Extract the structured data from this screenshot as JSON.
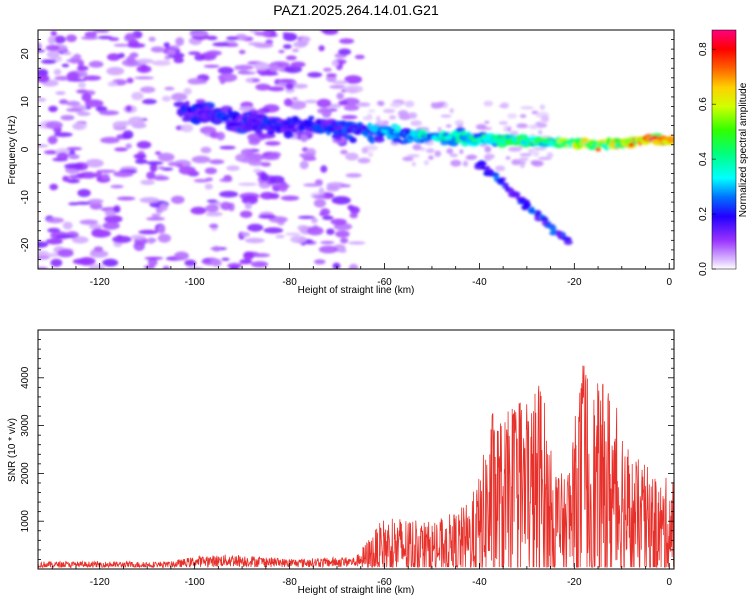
{
  "title": "PAZ1.2025.264.14.01.G21",
  "colors": {
    "line": "#e8302a",
    "axis": "#000000"
  },
  "chart_data": [
    {
      "type": "heatmap",
      "name": "spectrogram",
      "xlabel": "Height of straight line (km)",
      "ylabel": "Frequency (Hz)",
      "xlim": [
        -133,
        1
      ],
      "ylim": [
        -25,
        25
      ],
      "xticks": [
        -120,
        -100,
        -80,
        -60,
        -40,
        -20,
        0
      ],
      "yticks": [
        -20,
        -10,
        0,
        10,
        20
      ],
      "colorbar": {
        "label": "Normalized spectral amplitude",
        "ticks": [
          0.0,
          0.2,
          0.4,
          0.6,
          0.8
        ],
        "tick_labels": [
          "0.0",
          "0.2",
          "0.4",
          "0.6",
          "0.8"
        ],
        "range": [
          0,
          0.87
        ]
      },
      "main_track": [
        {
          "x": -103,
          "y": 8,
          "a": 0.2
        },
        {
          "x": -95,
          "y": 7,
          "a": 0.22
        },
        {
          "x": -85,
          "y": 5.5,
          "a": 0.2
        },
        {
          "x": -75,
          "y": 5,
          "a": 0.2
        },
        {
          "x": -65,
          "y": 4,
          "a": 0.25
        },
        {
          "x": -55,
          "y": 3,
          "a": 0.32
        },
        {
          "x": -45,
          "y": 2.5,
          "a": 0.38
        },
        {
          "x": -35,
          "y": 2,
          "a": 0.42
        },
        {
          "x": -25,
          "y": 1.5,
          "a": 0.48
        },
        {
          "x": -15,
          "y": 1,
          "a": 0.6
        },
        {
          "x": -8,
          "y": 1.5,
          "a": 0.7
        },
        {
          "x": -3,
          "y": 2.5,
          "a": 0.8
        },
        {
          "x": 0,
          "y": 1.5,
          "a": 0.7
        }
      ],
      "secondary_track": [
        {
          "x": -40,
          "y": -3
        },
        {
          "x": -35,
          "y": -7
        },
        {
          "x": -30,
          "y": -12
        },
        {
          "x": -25,
          "y": -16
        },
        {
          "x": -21,
          "y": -19
        }
      ],
      "noise_region_x": [
        -133,
        -65
      ]
    },
    {
      "type": "line",
      "name": "snr",
      "xlabel": "Height of straight line (km)",
      "ylabel": "SNR (10 * v/v)",
      "xlim": [
        -133,
        1
      ],
      "ylim": [
        0,
        5000
      ],
      "xticks": [
        -120,
        -100,
        -80,
        -60,
        -40,
        -20,
        0
      ],
      "yticks": [
        1000,
        2000,
        3000,
        4000
      ],
      "envelope": [
        {
          "x": -133,
          "y": 150
        },
        {
          "x": -105,
          "y": 150
        },
        {
          "x": -100,
          "y": 250
        },
        {
          "x": -92,
          "y": 300
        },
        {
          "x": -80,
          "y": 200
        },
        {
          "x": -66,
          "y": 250
        },
        {
          "x": -64,
          "y": 500
        },
        {
          "x": -60,
          "y": 1000
        },
        {
          "x": -55,
          "y": 1000
        },
        {
          "x": -50,
          "y": 900
        },
        {
          "x": -45,
          "y": 1100
        },
        {
          "x": -42,
          "y": 1300
        },
        {
          "x": -40,
          "y": 1800
        },
        {
          "x": -37,
          "y": 3200
        },
        {
          "x": -35,
          "y": 2800
        },
        {
          "x": -32,
          "y": 3400
        },
        {
          "x": -29,
          "y": 3300
        },
        {
          "x": -27,
          "y": 3800
        },
        {
          "x": -25,
          "y": 2300
        },
        {
          "x": -22,
          "y": 1700
        },
        {
          "x": -20,
          "y": 2800
        },
        {
          "x": -18,
          "y": 4200
        },
        {
          "x": -16,
          "y": 3500
        },
        {
          "x": -13,
          "y": 3600
        },
        {
          "x": -10,
          "y": 3000
        },
        {
          "x": -8,
          "y": 2200
        },
        {
          "x": -5,
          "y": 2000
        },
        {
          "x": -2,
          "y": 1700
        },
        {
          "x": 1,
          "y": 1800
        }
      ]
    }
  ]
}
